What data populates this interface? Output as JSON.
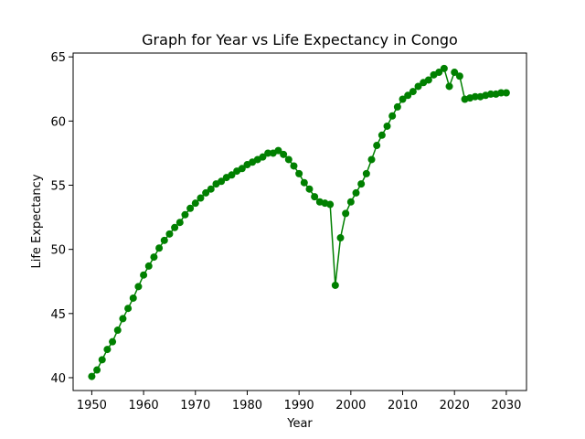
{
  "chart_data": {
    "type": "line",
    "title": "Graph for Year vs Life Expectancy in Congo",
    "xlabel": "Year",
    "ylabel": "Life Expectancy",
    "xlim": [
      1946.4,
      2033.9
    ],
    "ylim": [
      39.0,
      65.3
    ],
    "x_ticks": [
      1950,
      1960,
      1970,
      1980,
      1990,
      2000,
      2010,
      2020,
      2030
    ],
    "y_ticks": [
      40,
      45,
      50,
      55,
      60,
      65
    ],
    "grid": false,
    "legend": "none",
    "color": "#008000",
    "marker": "circle",
    "series": [
      {
        "x": [
          1950,
          1951,
          1952,
          1953,
          1954,
          1955,
          1956,
          1957,
          1958,
          1959,
          1960,
          1961,
          1962,
          1963,
          1964,
          1965,
          1966,
          1967,
          1968,
          1969,
          1970,
          1971,
          1972,
          1973,
          1974,
          1975,
          1976,
          1977,
          1978,
          1979,
          1980,
          1981,
          1982,
          1983,
          1984,
          1985,
          1986,
          1987,
          1988,
          1989,
          1990,
          1991,
          1992,
          1993,
          1994,
          1995,
          1996,
          1997,
          1998,
          1999,
          2000,
          2001,
          2002,
          2003,
          2004,
          2005,
          2006,
          2007,
          2008,
          2009,
          2010,
          2011,
          2012,
          2013,
          2014,
          2015,
          2016,
          2017,
          2018,
          2019,
          2020,
          2021,
          2022,
          2023,
          2024,
          2025,
          2026,
          2027,
          2028,
          2029,
          2030
        ],
        "values": [
          40.1,
          40.6,
          41.4,
          42.2,
          42.8,
          43.7,
          44.6,
          45.4,
          46.2,
          47.1,
          48.0,
          48.7,
          49.4,
          50.1,
          50.7,
          51.2,
          51.7,
          52.1,
          52.7,
          53.2,
          53.6,
          54.0,
          54.4,
          54.7,
          55.1,
          55.3,
          55.6,
          55.8,
          56.1,
          56.3,
          56.6,
          56.8,
          57.0,
          57.2,
          57.5,
          57.5,
          57.7,
          57.4,
          57.0,
          56.5,
          55.9,
          55.2,
          54.7,
          54.1,
          53.7,
          53.6,
          53.5,
          47.2,
          50.9,
          52.8,
          53.7,
          54.4,
          55.1,
          55.9,
          57.0,
          58.1,
          58.9,
          59.6,
          60.4,
          61.1,
          61.7,
          62.0,
          62.3,
          62.7,
          63.0,
          63.2,
          63.6,
          63.8,
          64.1,
          62.7,
          63.8,
          63.5,
          61.7,
          61.8,
          61.9,
          61.9,
          62.0,
          62.1,
          62.1,
          62.2,
          62.2
        ]
      }
    ]
  }
}
